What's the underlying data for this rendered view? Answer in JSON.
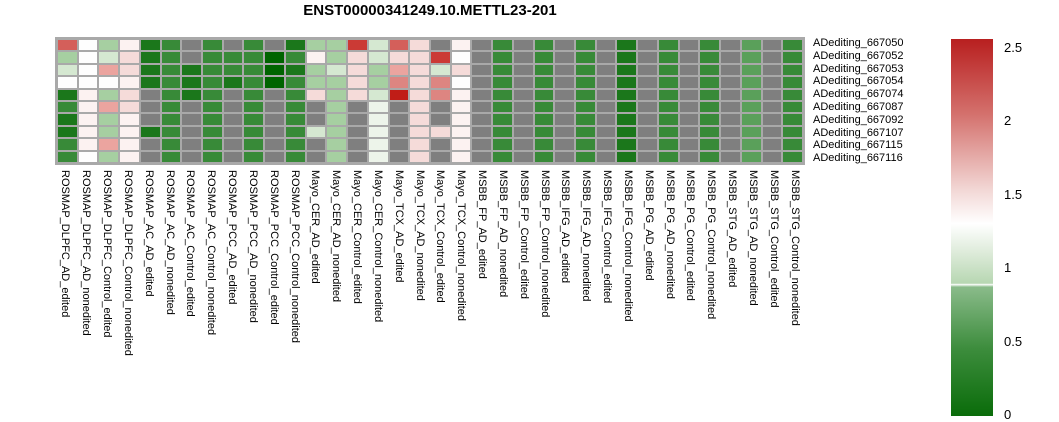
{
  "title": "ENST00000341249.10.METTL23-201",
  "chart_data": {
    "type": "heatmap",
    "title": "ENST00000341249.10.METTL23-201",
    "rows": [
      "ADediting_667050",
      "ADediting_667052",
      "ADediting_667053",
      "ADediting_667054",
      "ADediting_667074",
      "ADediting_667087",
      "ADediting_667092",
      "ADediting_667107",
      "ADediting_667115",
      "ADediting_667116"
    ],
    "columns": [
      "ROSMAP_DLPFC_AD_edited",
      "ROSMAP_DLPFC_AD_nonedited",
      "ROSMAP_DLPFC_Control_edited",
      "ROSMAP_DLPFC_Control_nonedited",
      "ROSMAP_AC_AD_edited",
      "ROSMAP_AC_AD_nonedited",
      "ROSMAP_AC_Control_edited",
      "ROSMAP_AC_Control_nonedited",
      "ROSMAP_PCC_AD_edited",
      "ROSMAP_PCC_AD_nonedited",
      "ROSMAP_PCC_Control_edited",
      "ROSMAP_PCC_Control_nonedited",
      "Mayo_CER_AD_edited",
      "Mayo_CER_AD_nonedited",
      "Mayo_CER_Control_edited",
      "Mayo_CER_Control_nonedited",
      "Mayo_TCX_AD_edited",
      "Mayo_TCX_AD_nonedited",
      "Mayo_TCX_Control_edited",
      "Mayo_TCX_Control_nonedited",
      "MSBB_FP_AD_edited",
      "MSBB_FP_AD_nonedited",
      "MSBB_FP_Control_edited",
      "MSBB_FP_Control_nonedited",
      "MSBB_IFG_AD_edited",
      "MSBB_IFG_AD_nonedited",
      "MSBB_IFG_Control_edited",
      "MSBB_IFG_Control_nonedited",
      "MSBB_PG_AD_edited",
      "MSBB_PG_AD_nonedited",
      "MSBB_PG_Control_edited",
      "MSBB_PG_Control_nonedited",
      "MSBB_STG_AD_edited",
      "MSBB_STG_AD_nonedited",
      "MSBB_STG_Control_edited",
      "MSBB_STG_Control_nonedited"
    ],
    "palette": {
      "NA": {
        "color": "#7f7f7f",
        "value": null
      },
      "G0": {
        "color": "#006400",
        "value": 0.05
      },
      "G1": {
        "color": "#1b771b",
        "value": 0.2
      },
      "G2": {
        "color": "#388a38",
        "value": 0.45
      },
      "G3": {
        "color": "#5aa05a",
        "value": 0.65
      },
      "G4": {
        "color": "#a6cfa1",
        "value": 0.95
      },
      "G5": {
        "color": "#d5e8d1",
        "value": 1.1
      },
      "G6": {
        "color": "#edf4ea",
        "value": 1.2
      },
      "W": {
        "color": "#fefefe",
        "value": 1.25
      },
      "P1": {
        "color": "#fcf2f1",
        "value": 1.3
      },
      "P2": {
        "color": "#f5dbd9",
        "value": 1.45
      },
      "P3": {
        "color": "#eba49f",
        "value": 1.7
      },
      "P4": {
        "color": "#dd8581",
        "value": 1.85
      },
      "R1": {
        "color": "#d45f5a",
        "value": 2.1
      },
      "R2": {
        "color": "#cb3a35",
        "value": 2.3
      },
      "R3": {
        "color": "#c01d17",
        "value": 2.5
      }
    },
    "cell_tokens": [
      [
        "R1",
        "W",
        "G4",
        "P1",
        "G1",
        "G2",
        "NA",
        "G2",
        "NA",
        "G2",
        "NA",
        "G1",
        "G4",
        "G4",
        "R2",
        "G5",
        "R1",
        "P2",
        "NA",
        "P1",
        "NA",
        "G2",
        "NA",
        "G2",
        "NA",
        "G2",
        "NA",
        "G1",
        "NA",
        "G2",
        "NA",
        "G2",
        "NA",
        "G3",
        "NA",
        "G2"
      ],
      [
        "G4",
        "W",
        "G5",
        "P2",
        "G1",
        "G2",
        "NA",
        "G2",
        "G2",
        "G2",
        "G0",
        "G2",
        "P1",
        "G4",
        "P2",
        "G5",
        "P2",
        "P2",
        "R2",
        "W",
        "NA",
        "G2",
        "NA",
        "G2",
        "NA",
        "G2",
        "NA",
        "G1",
        "NA",
        "G2",
        "NA",
        "G2",
        "NA",
        "G3",
        "NA",
        "G2"
      ],
      [
        "G5",
        "W",
        "P3",
        "P2",
        "G1",
        "G2",
        "G1",
        "G2",
        "G2",
        "G2",
        "G0",
        "G1",
        "G4",
        "G5",
        "P2",
        "G4",
        "P3",
        "P2",
        "G5",
        "P2",
        "NA",
        "G2",
        "NA",
        "G2",
        "NA",
        "G2",
        "NA",
        "G1",
        "NA",
        "G2",
        "NA",
        "G2",
        "NA",
        "G3",
        "NA",
        "G2"
      ],
      [
        "W",
        "W",
        "W",
        "P1",
        "G1",
        "G2",
        "G1",
        "G2",
        "G1",
        "G2",
        "G0",
        "G2",
        "G4",
        "G4",
        "P2",
        "G4",
        "P4",
        "P2",
        "P4",
        "W",
        "NA",
        "G2",
        "NA",
        "G2",
        "NA",
        "G2",
        "NA",
        "G1",
        "NA",
        "G2",
        "NA",
        "G2",
        "NA",
        "G3",
        "NA",
        "G2"
      ],
      [
        "G1",
        "P1",
        "G4",
        "P2",
        "NA",
        "G2",
        "G1",
        "G2",
        "NA",
        "G2",
        "NA",
        "G2",
        "P2",
        "G4",
        "P2",
        "G5",
        "R3",
        "P2",
        "P4",
        "P1",
        "NA",
        "G2",
        "NA",
        "G2",
        "NA",
        "G2",
        "NA",
        "G1",
        "NA",
        "G2",
        "NA",
        "G2",
        "NA",
        "G3",
        "NA",
        "G2"
      ],
      [
        "G2",
        "P1",
        "P3",
        "P2",
        "NA",
        "G2",
        "NA",
        "G2",
        "NA",
        "G2",
        "NA",
        "G2",
        "NA",
        "G4",
        "NA",
        "G6",
        "NA",
        "P2",
        "NA",
        "P1",
        "NA",
        "G2",
        "NA",
        "G2",
        "NA",
        "G2",
        "NA",
        "G1",
        "NA",
        "G2",
        "NA",
        "G2",
        "NA",
        "G3",
        "NA",
        "G2"
      ],
      [
        "G1",
        "P1",
        "G4",
        "P1",
        "NA",
        "G2",
        "NA",
        "G2",
        "NA",
        "G2",
        "NA",
        "G2",
        "NA",
        "G4",
        "NA",
        "G6",
        "NA",
        "P2",
        "NA",
        "P1",
        "NA",
        "G2",
        "NA",
        "G2",
        "NA",
        "G2",
        "NA",
        "G1",
        "NA",
        "G2",
        "NA",
        "G2",
        "NA",
        "G3",
        "NA",
        "G2"
      ],
      [
        "G1",
        "P1",
        "G4",
        "P1",
        "G1",
        "G2",
        "NA",
        "G2",
        "NA",
        "G2",
        "NA",
        "G2",
        "G5",
        "G4",
        "NA",
        "G6",
        "NA",
        "P2",
        "P2",
        "P1",
        "NA",
        "G2",
        "NA",
        "G2",
        "NA",
        "G2",
        "NA",
        "G1",
        "NA",
        "G2",
        "NA",
        "G2",
        "NA",
        "G3",
        "NA",
        "G2"
      ],
      [
        "G2",
        "P1",
        "P3",
        "P1",
        "NA",
        "G2",
        "NA",
        "G2",
        "NA",
        "G2",
        "NA",
        "G2",
        "NA",
        "G4",
        "NA",
        "G6",
        "NA",
        "P2",
        "NA",
        "P1",
        "NA",
        "G2",
        "NA",
        "G2",
        "NA",
        "G2",
        "NA",
        "G1",
        "NA",
        "G2",
        "NA",
        "G2",
        "NA",
        "G3",
        "NA",
        "G2"
      ],
      [
        "G2",
        "W",
        "G4",
        "P1",
        "NA",
        "G2",
        "NA",
        "G2",
        "NA",
        "G2",
        "NA",
        "G2",
        "NA",
        "G4",
        "NA",
        "G6",
        "NA",
        "P2",
        "NA",
        "P1",
        "NA",
        "G2",
        "NA",
        "G2",
        "NA",
        "G2",
        "NA",
        "G1",
        "NA",
        "G2",
        "NA",
        "G2",
        "NA",
        "G3",
        "NA",
        "G2"
      ]
    ],
    "legend": {
      "position": "right",
      "range": [
        0,
        2.5
      ],
      "ticks": [
        "2.5",
        "2",
        "1.5",
        "1",
        "0.5",
        "0"
      ],
      "na_color": "#7f7f7f",
      "gradient": [
        [
          0,
          "#b81f1f"
        ],
        [
          20,
          "#d4716d"
        ],
        [
          40,
          "#f2d7d5"
        ],
        [
          49,
          "#ffffff"
        ],
        [
          57,
          "#dcead8"
        ],
        [
          64.8,
          "#b7d7b2"
        ],
        [
          65.1,
          "#ffffff"
        ],
        [
          65.8,
          "#8abb8a"
        ],
        [
          82,
          "#3d8d3d"
        ],
        [
          100,
          "#0a6c0a"
        ]
      ]
    }
  }
}
